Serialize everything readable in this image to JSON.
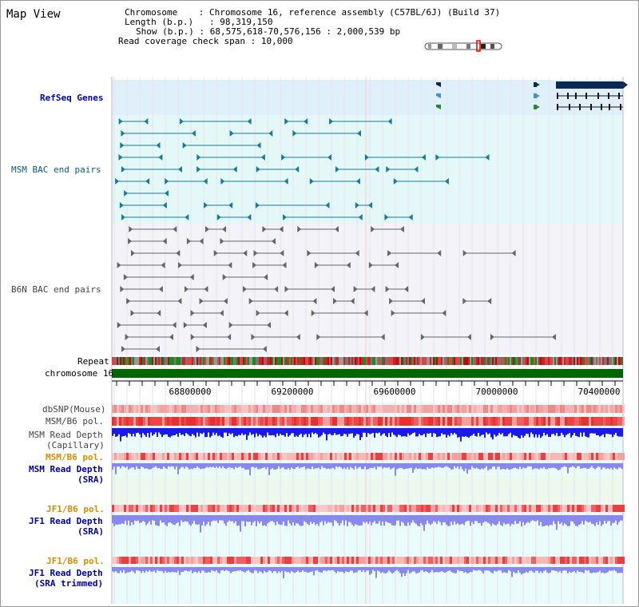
{
  "title": "Map View",
  "header": {
    "chromosome_key": "Chromosome",
    "chromosome_value": "Chromosome 16, reference assembly (C57BL/6J) (Build 37)",
    "length_key": "Length (b.p.)",
    "length_value": "98,319,150",
    "show_key": "Show (b.p.)",
    "show_value": "68,575,618-70,576,156 : 2,000,539 bp",
    "coverage_key": "Read coverage check span",
    "coverage_value": "10,000"
  },
  "tracks": {
    "refseq": "RefSeq Genes",
    "msm_bac": "MSM BAC end pairs",
    "b6n_bac": "B6N BAC end pairs",
    "repeat": "Repeat",
    "chromosome": "chromosome 16",
    "dbsnp": "dbSNP(Mouse)",
    "msm_b6_pol": "MSM/B6 pol.",
    "msm_depth_cap_1": "MSM Read Depth",
    "msm_depth_cap_2": "(Capillary)",
    "msm_b6_pol2": "MSM/B6 pol.",
    "msm_depth_sra_1": "MSM Read Depth",
    "msm_depth_sra_2": "(SRA)",
    "jf1_b6_pol": "JF1/B6 pol.",
    "jf1_depth_sra_1": "JF1 Read Depth",
    "jf1_depth_sra_2": "(SRA)",
    "jf1_b6_pol2": "JF1/B6 pol.",
    "jf1_depth_trim_1": "JF1 Read Depth",
    "jf1_depth_trim_2": "(SRA trimmed)"
  },
  "axis": {
    "ticks": [
      "68800000",
      "69200000",
      "69600000",
      "70000000",
      "70400000"
    ]
  },
  "colors": {
    "refseq_bg": "#dff0fa",
    "msm_bg": "#e4f8f8",
    "b6n_bg": "#f4f4f8",
    "chromosome": "#006600",
    "depth_cap": "#1a1ae6",
    "depth_sra": "#8888ee"
  }
}
